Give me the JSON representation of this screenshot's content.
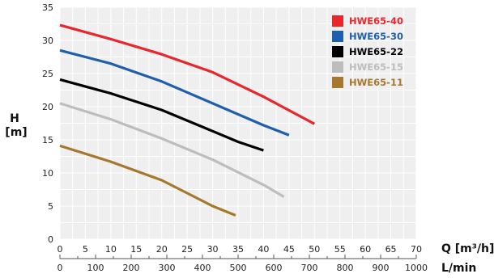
{
  "chart_data": {
    "type": "line",
    "ylabel": "H",
    "ylabel_unit": "[m]",
    "xlabel": "Q [m³/h]",
    "x2label": "L/min",
    "xlim": [
      0,
      70
    ],
    "ylim": [
      0,
      35
    ],
    "x2lim": [
      0,
      1000
    ],
    "x_ticks": [
      0,
      5,
      10,
      15,
      20,
      25,
      30,
      35,
      40,
      45,
      50,
      55,
      60,
      65,
      70
    ],
    "y_ticks": [
      0,
      5,
      10,
      15,
      20,
      25,
      30,
      35
    ],
    "x2_ticks": [
      0,
      100,
      200,
      300,
      400,
      500,
      600,
      700,
      800,
      900,
      1000
    ],
    "grid": true,
    "legend_position": "top-right",
    "series": [
      {
        "name": "HWE65-40",
        "color": "#e8262c",
        "x": [
          0,
          10,
          20,
          30,
          40,
          50
        ],
        "y": [
          32.3,
          30.2,
          27.9,
          25.2,
          21.5,
          17.4
        ]
      },
      {
        "name": "HWE65-30",
        "color": "#1f5fae",
        "x": [
          0,
          10,
          20,
          30,
          40,
          45
        ],
        "y": [
          28.5,
          26.5,
          23.8,
          20.5,
          17.2,
          15.7
        ]
      },
      {
        "name": "HWE65-22",
        "color": "#000000",
        "x": [
          0,
          10,
          20,
          30,
          35,
          40
        ],
        "y": [
          24.1,
          22.0,
          19.5,
          16.3,
          14.7,
          13.4
        ]
      },
      {
        "name": "HWE65-15",
        "color": "#bdbdbd",
        "x": [
          0,
          10,
          20,
          30,
          40,
          44
        ],
        "y": [
          20.5,
          18.1,
          15.2,
          12.0,
          8.2,
          6.4
        ]
      },
      {
        "name": "HWE65-11",
        "color": "#a6782e",
        "x": [
          0,
          10,
          20,
          30,
          34.5
        ],
        "y": [
          14.1,
          11.7,
          8.9,
          5.0,
          3.6
        ]
      }
    ]
  }
}
